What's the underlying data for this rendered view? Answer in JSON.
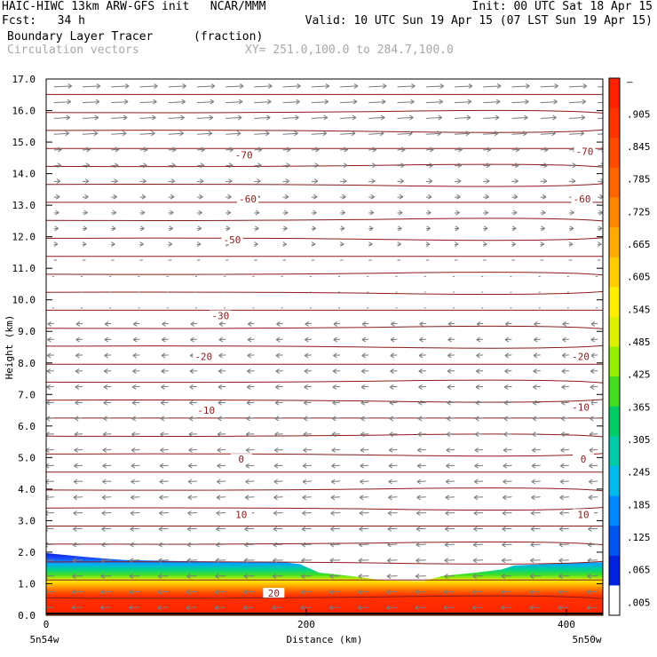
{
  "header": {
    "line1_left": "HAIC-HIWC 13km ARW-GFS init   NCAR/MMM",
    "line1_right": "Init: 00 UTC Sat 18 Apr 15",
    "line2_left": "Fcst:   34 h",
    "line2_right": "Valid: 10 UTC Sun 19 Apr 15 (07 LST Sun 19 Apr 15)",
    "line3_field": "Boundary Layer Tracer",
    "line3_units": "(fraction)",
    "line4_vectors": "Circulation vectors",
    "line4_xy": "XY= 251.0,100.0 to 284.7,100.0"
  },
  "chart_data": {
    "type": "heatmap",
    "xlabel": "Distance (km)",
    "ylabel": "Height (km)",
    "xlim": [
      0,
      428
    ],
    "ylim": [
      0,
      17
    ],
    "x_ticks": [
      "0",
      "200",
      "400"
    ],
    "y_ticks": [
      "0.0",
      "1.0",
      "2.0",
      "3.0",
      "4.0",
      "5.0",
      "6.0",
      "7.0",
      "8.0",
      "9.0",
      "10.0",
      "11.0",
      "12.0",
      "13.0",
      "14.0",
      "15.0",
      "16.0",
      "17.0"
    ],
    "x_end_labels": {
      "left": "5n54w",
      "right": "5n50w"
    },
    "colorbar": {
      "labels": [
        "–",
        ".905",
        ".845",
        ".785",
        ".725",
        ".665",
        ".605",
        ".545",
        ".485",
        ".425",
        ".365",
        ".305",
        ".245",
        ".185",
        ".125",
        ".065",
        ".005"
      ],
      "colors": [
        "#ff2200",
        "#ff3300",
        "#ff4a00",
        "#ff6600",
        "#ff8800",
        "#ffaa00",
        "#ffcc00",
        "#ffee00",
        "#ddf000",
        "#99ee00",
        "#44dd22",
        "#00cc66",
        "#00ccaa",
        "#00bbee",
        "#0088ff",
        "#0055ee",
        "#0022dd",
        "#ffffff"
      ]
    },
    "contour_labels": [
      {
        "text": "-70",
        "x": 152,
        "y": 14.6
      },
      {
        "text": "-70",
        "x": 414,
        "y": 14.7
      },
      {
        "text": "-60",
        "x": 155,
        "y": 13.2
      },
      {
        "text": "-60",
        "x": 412,
        "y": 13.2
      },
      {
        "text": "-50",
        "x": 143,
        "y": 11.9
      },
      {
        "text": "-30",
        "x": 134,
        "y": 9.5
      },
      {
        "text": "-20",
        "x": 121,
        "y": 8.2
      },
      {
        "text": "-20",
        "x": 411,
        "y": 8.2
      },
      {
        "text": "-10",
        "x": 123,
        "y": 6.5
      },
      {
        "text": "-10",
        "x": 411,
        "y": 6.6
      },
      {
        "text": "0",
        "x": 150,
        "y": 4.95
      },
      {
        "text": "0",
        "x": 413,
        "y": 4.95
      },
      {
        "text": "10",
        "x": 150,
        "y": 3.2
      },
      {
        "text": "10",
        "x": 413,
        "y": 3.2
      },
      {
        "text": "20",
        "x": 175,
        "y": 0.7
      }
    ],
    "bl_top_km": [
      [
        0,
        1.97
      ],
      [
        30,
        1.85
      ],
      [
        60,
        1.75
      ],
      [
        100,
        1.72
      ],
      [
        150,
        1.7
      ],
      [
        180,
        1.7
      ],
      [
        195,
        1.62
      ],
      [
        210,
        1.35
      ],
      [
        240,
        1.22
      ],
      [
        260,
        1.1
      ],
      [
        290,
        1.08
      ],
      [
        305,
        1.25
      ],
      [
        330,
        1.35
      ],
      [
        350,
        1.45
      ],
      [
        360,
        1.58
      ],
      [
        400,
        1.65
      ],
      [
        428,
        1.68
      ]
    ]
  }
}
